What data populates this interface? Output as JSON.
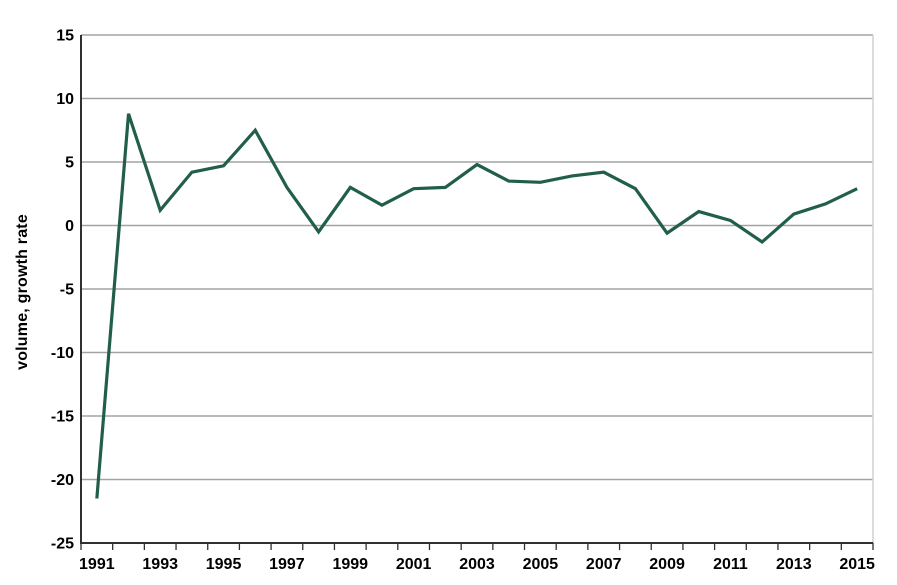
{
  "chart_data": {
    "type": "line",
    "title": "",
    "xlabel": "",
    "ylabel": "volume, growth rate",
    "x": [
      1991,
      1992,
      1993,
      1994,
      1995,
      1996,
      1997,
      1998,
      1999,
      2000,
      2001,
      2002,
      2003,
      2004,
      2005,
      2006,
      2007,
      2008,
      2009,
      2010,
      2011,
      2012,
      2013,
      2014,
      2015
    ],
    "values": [
      -21.5,
      8.8,
      1.2,
      4.2,
      4.7,
      7.5,
      3.0,
      -0.5,
      3.0,
      1.6,
      2.9,
      3.0,
      4.8,
      3.5,
      3.4,
      3.9,
      4.2,
      2.9,
      -0.6,
      1.1,
      0.4,
      -1.3,
      0.9,
      1.7,
      2.9
    ],
    "ylim": [
      -25,
      15
    ],
    "yticks": [
      15,
      10,
      5,
      0,
      -5,
      -10,
      -15,
      -20,
      -25
    ],
    "xtick_labels": [
      1991,
      1993,
      1995,
      1997,
      1999,
      2001,
      2003,
      2005,
      2007,
      2009,
      2011,
      2013,
      2015
    ],
    "grid": "horizontal",
    "legend": "none",
    "colors": {
      "line": "#215e4c",
      "grid": "#a3a3a3",
      "axis": "#303030",
      "plot_border": "#d4d4d4",
      "text": "#000000",
      "background": "#ffffff"
    }
  }
}
